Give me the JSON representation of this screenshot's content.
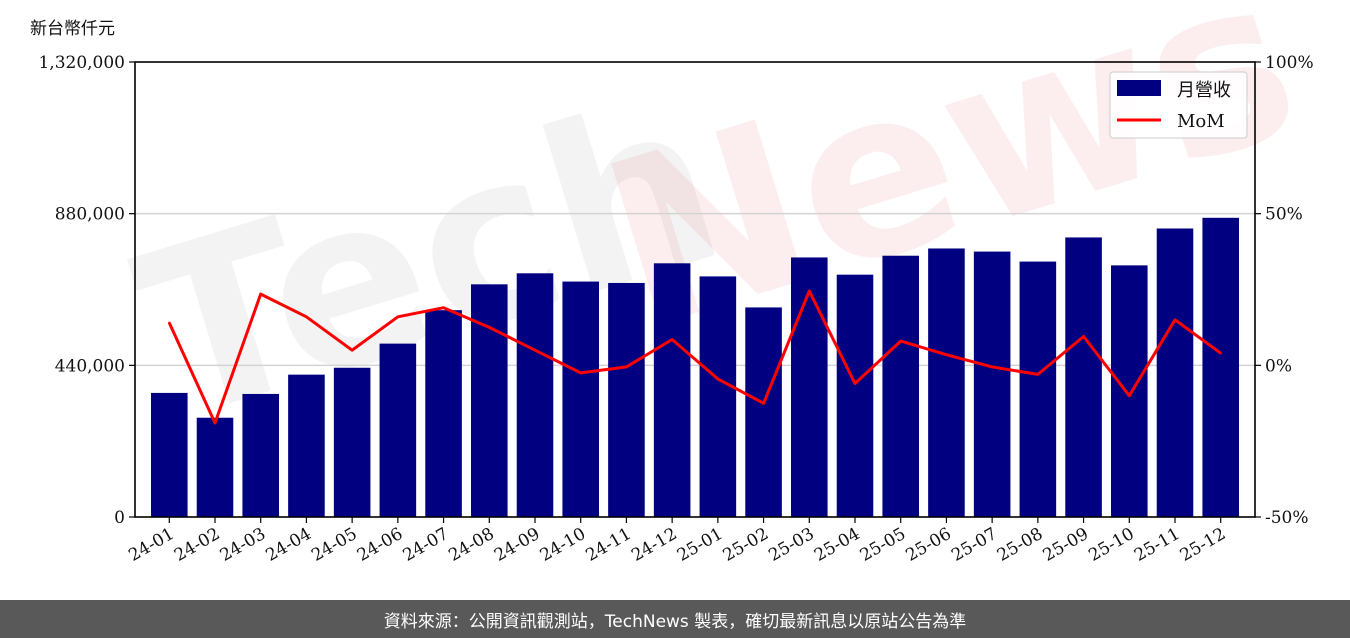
{
  "unit_label": "新台幣仟元",
  "footer_text": "資料來源：公開資訊觀測站，TechNews 製表，確切最新訊息以原站公告為準",
  "watermark": {
    "part1": "Tech",
    "part2": "News"
  },
  "colors": {
    "bar": "#000080",
    "line": "#ff0000",
    "grid": "#d3d3d3",
    "footer_bg": "#595959"
  },
  "chart_data": {
    "type": "bar+line",
    "categories": [
      "24-01",
      "24-02",
      "24-03",
      "24-04",
      "24-05",
      "24-06",
      "24-07",
      "24-08",
      "24-09",
      "24-10",
      "24-11",
      "24-12",
      "25-01",
      "25-02",
      "25-03",
      "25-04",
      "25-05",
      "25-06",
      "25-07",
      "25-08",
      "25-09",
      "25-10",
      "25-11",
      "25-12"
    ],
    "series": [
      {
        "name": "月營收",
        "type": "bar",
        "axis": "left",
        "values": [
          360000,
          288000,
          357000,
          413000,
          433000,
          503000,
          600000,
          675000,
          707000,
          683000,
          679000,
          736000,
          698000,
          608000,
          753000,
          703000,
          758000,
          779000,
          770000,
          741000,
          811000,
          730000,
          837000,
          868000
        ]
      },
      {
        "name": "MoM",
        "type": "line",
        "axis": "right",
        "values": [
          14.0,
          -19.0,
          23.5,
          16.0,
          5.0,
          16.0,
          19.0,
          12.5,
          5.0,
          -2.5,
          -0.5,
          8.5,
          -4.5,
          -12.5,
          24.5,
          -6.0,
          8.0,
          3.5,
          -0.5,
          -3.0,
          9.5,
          -10.0,
          15.0,
          4.0
        ]
      }
    ],
    "y_left": {
      "ylim": [
        0,
        1320000
      ],
      "ticks": [
        0,
        440000,
        880000,
        1320000
      ],
      "tick_labels": [
        "0",
        "440,000",
        "880,000",
        "1,320,000"
      ]
    },
    "y_right": {
      "ylim": [
        -50,
        100
      ],
      "ticks": [
        -50,
        0,
        50,
        100
      ],
      "tick_labels": [
        "-50%",
        "0%",
        "50%",
        "100%"
      ]
    },
    "grid": "horizontal",
    "legend": {
      "position": "top-right",
      "entries": [
        "月營收",
        "MoM"
      ]
    }
  }
}
